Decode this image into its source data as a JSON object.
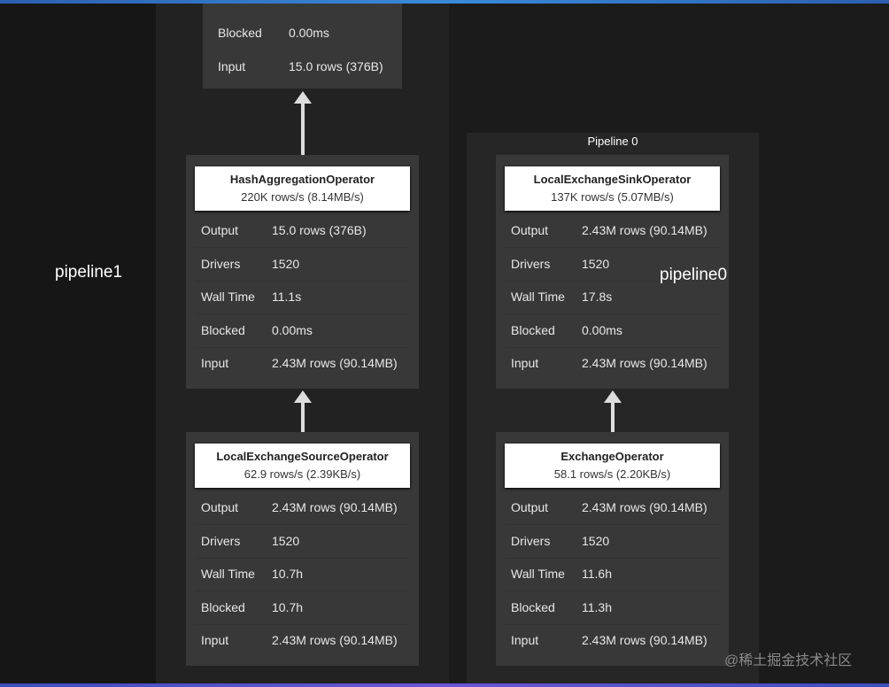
{
  "labels": {
    "pipeline1": "pipeline1",
    "pipeline0": "pipeline0",
    "pipeline0_title": "Pipeline 0"
  },
  "top_operator": {
    "rows": [
      {
        "k": "Blocked",
        "v": "0.00ms"
      },
      {
        "k": "Input",
        "v": "15.0 rows (376B)"
      }
    ]
  },
  "operators": [
    {
      "name": "HashAggregationOperator",
      "rate": "220K rows/s (8.14MB/s)",
      "rows": [
        {
          "k": "Output",
          "v": "15.0 rows (376B)"
        },
        {
          "k": "Drivers",
          "v": "1520"
        },
        {
          "k": "Wall Time",
          "v": "11.1s"
        },
        {
          "k": "Blocked",
          "v": "0.00ms"
        },
        {
          "k": "Input",
          "v": "2.43M rows (90.14MB)"
        }
      ]
    },
    {
      "name": "LocalExchangeSourceOperator",
      "rate": "62.9 rows/s (2.39KB/s)",
      "rows": [
        {
          "k": "Output",
          "v": "2.43M rows (90.14MB)"
        },
        {
          "k": "Drivers",
          "v": "1520"
        },
        {
          "k": "Wall Time",
          "v": "10.7h"
        },
        {
          "k": "Blocked",
          "v": "10.7h"
        },
        {
          "k": "Input",
          "v": "2.43M rows (90.14MB)"
        }
      ]
    },
    {
      "name": "LocalExchangeSinkOperator",
      "rate": "137K rows/s (5.07MB/s)",
      "rows": [
        {
          "k": "Output",
          "v": "2.43M rows (90.14MB)"
        },
        {
          "k": "Drivers",
          "v": "1520"
        },
        {
          "k": "Wall Time",
          "v": "17.8s"
        },
        {
          "k": "Blocked",
          "v": "0.00ms"
        },
        {
          "k": "Input",
          "v": "2.43M rows (90.14MB)"
        }
      ]
    },
    {
      "name": "ExchangeOperator",
      "rate": "58.1 rows/s (2.20KB/s)",
      "rows": [
        {
          "k": "Output",
          "v": "2.43M rows (90.14MB)"
        },
        {
          "k": "Drivers",
          "v": "1520"
        },
        {
          "k": "Wall Time",
          "v": "11.6h"
        },
        {
          "k": "Blocked",
          "v": "11.3h"
        },
        {
          "k": "Input",
          "v": "2.43M rows (90.14MB)"
        }
      ]
    }
  ],
  "watermark": "@稀土掘金技术社区"
}
